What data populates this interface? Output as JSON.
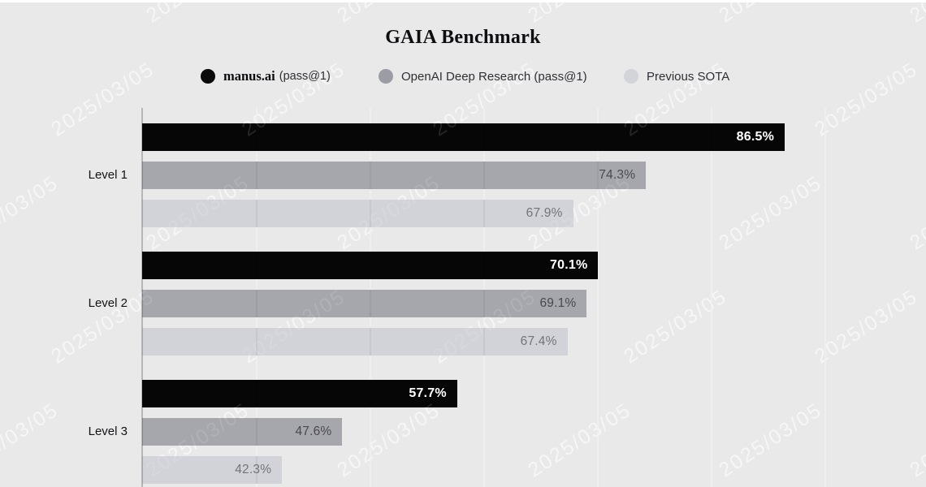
{
  "title": "GAIA Benchmark",
  "legend": {
    "items": [
      {
        "id": "manus",
        "label": "manus.ai",
        "sublabel": "(pass@1)",
        "color": "#0a0a0a"
      },
      {
        "id": "openai",
        "label": "OpenAI Deep Research (pass@1)",
        "sublabel": "",
        "color": "#9c9ca4"
      },
      {
        "id": "sota",
        "label": "Previous SOTA",
        "sublabel": "",
        "color": "#d3d3da"
      }
    ]
  },
  "watermark": {
    "text": "2025/03/05"
  },
  "colors": {
    "background": "#e9e9ea",
    "axis": "rgba(0,0,0,0.22)",
    "grid_under": "rgba(255,255,255,0.85)",
    "grid_over": "rgba(0,0,0,0.05)"
  },
  "chart_data": {
    "type": "bar",
    "orientation": "horizontal",
    "title": "GAIA Benchmark",
    "categories": [
      "Level 1",
      "Level 2",
      "Level 3"
    ],
    "series": [
      {
        "name": "manus.ai (pass@1)",
        "color": "#060606",
        "label_color": "#ffffff",
        "values": [
          86.5,
          70.1,
          57.7
        ]
      },
      {
        "name": "OpenAI Deep Research (pass@1)",
        "color": "#a6a6ad",
        "label_color": "#48484e",
        "values": [
          74.3,
          69.1,
          47.6
        ]
      },
      {
        "name": "Previous SOTA",
        "color": "#d2d3d9",
        "label_color": "#73737a",
        "values": [
          67.9,
          67.4,
          42.3
        ]
      }
    ],
    "value_suffix": "%",
    "value_labels": "inside-end",
    "xlim": [
      30,
      99
    ],
    "grid_step": 10,
    "grid_visible": true,
    "legend_position": "top"
  }
}
